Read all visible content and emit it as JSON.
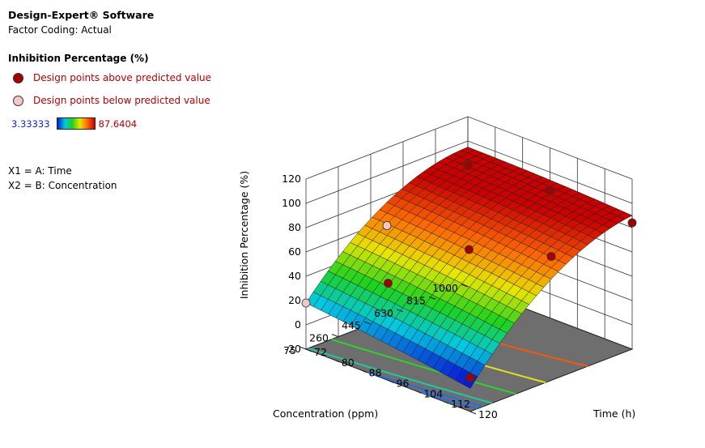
{
  "header": {
    "software": "Design-Expert® Software",
    "factor_coding": "Factor Coding: Actual"
  },
  "legend": {
    "response_title": "Inhibition Percentage (%)",
    "above_label": "Design points above predicted value",
    "below_label": "Design points below predicted value",
    "scale_min": "3.33333",
    "scale_max": "87.6404",
    "above_color": "#a00000",
    "below_color": "#f6c6c6"
  },
  "factors": {
    "x1": "X1 = A: Time",
    "x2": "X2 = B: Concentration"
  },
  "chart_data": {
    "type": "surface",
    "zlabel": "Inhibition Percentage (%)",
    "xlabel": "Time (h)",
    "ylabel": "Concentration (ppm)",
    "x_ticks": [
      "72",
      "80",
      "88",
      "96",
      "104",
      "112",
      "120"
    ],
    "y_ticks": [
      "75",
      "260",
      "445",
      "630",
      "815",
      "1000"
    ],
    "z_ticks": [
      "-20",
      "0",
      "20",
      "40",
      "60",
      "80",
      "100",
      "120"
    ],
    "xlim": [
      72,
      120
    ],
    "ylim": [
      75,
      1000
    ],
    "zlim": [
      -20,
      120
    ],
    "response_range": [
      3.33333,
      87.6404
    ],
    "surface_corners": [
      {
        "time": 72,
        "concentration": 1000,
        "value": 80
      },
      {
        "time": 120,
        "concentration": 1000,
        "value": 84
      },
      {
        "time": 120,
        "concentration": 75,
        "value": 3
      },
      {
        "time": 72,
        "concentration": 75,
        "value": 18
      }
    ],
    "design_points": [
      {
        "time": 72,
        "concentration": 1000,
        "value": 80,
        "position": "above"
      },
      {
        "time": 120,
        "concentration": 1000,
        "value": 84,
        "position": "above"
      },
      {
        "time": 96,
        "concentration": 1000,
        "value": 85,
        "position": "above"
      },
      {
        "time": 120,
        "concentration": 537.5,
        "value": 82,
        "position": "above"
      },
      {
        "time": 96,
        "concentration": 537.5,
        "value": 62,
        "position": "above"
      },
      {
        "time": 72,
        "concentration": 537.5,
        "value": 56,
        "position": "below"
      },
      {
        "time": 96,
        "concentration": 75,
        "value": 60,
        "position": "above"
      },
      {
        "time": 72,
        "concentration": 75,
        "value": 18,
        "position": "below"
      },
      {
        "time": 120,
        "concentration": 75,
        "value": 8,
        "position": "above"
      }
    ],
    "contour_levels": [
      20,
      40,
      60,
      80
    ],
    "contour_colors": [
      "#1f6fe8",
      "#20c8a0",
      "#30d030",
      "#e0e020",
      "#f05a10"
    ]
  }
}
